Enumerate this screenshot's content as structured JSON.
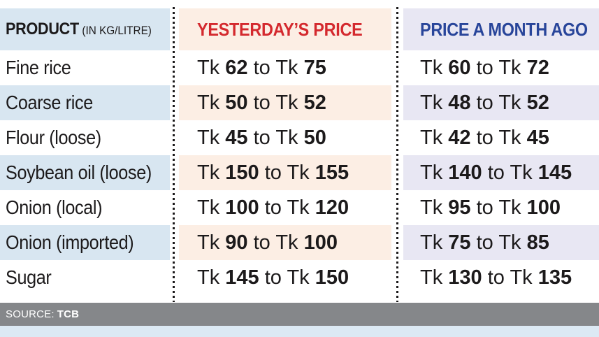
{
  "header": {
    "product_label": "PRODUCT",
    "product_unit": "(IN KG/LITRE)",
    "yesterday_label": "YESTERDAY’S PRICE",
    "month_ago_label": "PRICE A MONTH AGO"
  },
  "labels": {
    "currency": "Tk",
    "range_word": "to"
  },
  "table": {
    "rows": [
      {
        "product": "Fine rice",
        "y_min": "62",
        "y_max": "75",
        "m_min": "60",
        "m_max": "72"
      },
      {
        "product": "Coarse rice",
        "y_min": "50",
        "y_max": "52",
        "m_min": "48",
        "m_max": "52"
      },
      {
        "product": "Flour (loose)",
        "y_min": "45",
        "y_max": "50",
        "m_min": "42",
        "m_max": "45"
      },
      {
        "product": "Soybean oil (loose)",
        "y_min": "150",
        "y_max": "155",
        "m_min": "140",
        "m_max": "145"
      },
      {
        "product": "Onion (local)",
        "y_min": "100",
        "y_max": "120",
        "m_min": "95",
        "m_max": "100"
      },
      {
        "product": "Onion (imported)",
        "y_min": "90",
        "y_max": "100",
        "m_min": "75",
        "m_max": "85"
      },
      {
        "product": "Sugar",
        "y_min": "145",
        "y_max": "150",
        "m_min": "130",
        "m_max": "135"
      }
    ]
  },
  "footer": {
    "source_label": "SOURCE:",
    "source_value": "TCB"
  },
  "colors": {
    "row_blue": "#d8e6f1",
    "row_peach": "#fceee4",
    "row_lavender": "#e8e7f3",
    "header_red": "#d4292e",
    "header_blue": "#28459a",
    "text": "#1c1a1b",
    "source_bar_gray": "#85878a",
    "bottom_strip_blue": "#dce9f4"
  },
  "chart_data": {
    "type": "table",
    "title": "Commodity prices (Tk per kg/litre)",
    "columns": [
      "PRODUCT (IN KG/LITRE)",
      "YESTERDAY’S PRICE",
      "PRICE A MONTH AGO"
    ],
    "rows": [
      [
        "Fine rice",
        "Tk 62 to Tk 75",
        "Tk 60 to Tk 72"
      ],
      [
        "Coarse rice",
        "Tk 50 to Tk 52",
        "Tk 48 to Tk 52"
      ],
      [
        "Flour (loose)",
        "Tk 45 to Tk 50",
        "Tk 42 to Tk 45"
      ],
      [
        "Soybean oil (loose)",
        "Tk 150 to Tk 155",
        "Tk 140 to Tk 145"
      ],
      [
        "Onion (local)",
        "Tk 100 to Tk 120",
        "Tk 95 to Tk 100"
      ],
      [
        "Onion (imported)",
        "Tk 90 to Tk 100",
        "Tk 75 to Tk 85"
      ],
      [
        "Sugar",
        "Tk 145 to Tk 150",
        "Tk 130 to Tk 135"
      ]
    ],
    "source": "SOURCE: TCB"
  }
}
